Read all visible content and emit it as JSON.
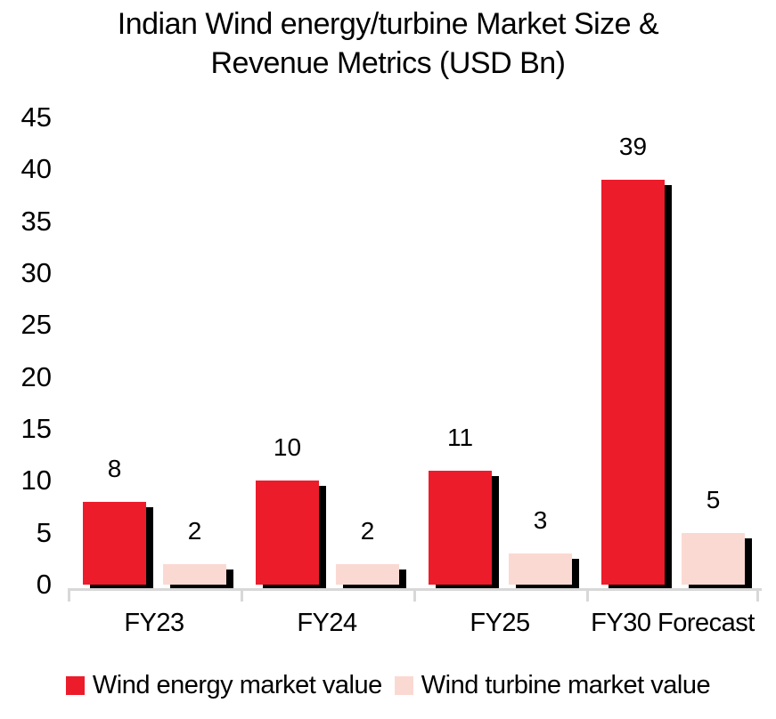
{
  "chart_data": {
    "type": "bar",
    "title": "Indian Wind energy/turbine Market Size & Revenue Metrics (USD Bn)",
    "title_lines": [
      "Indian Wind energy/turbine Market Size &",
      "Revenue Metrics (USD Bn)"
    ],
    "categories": [
      "FY23",
      "FY24",
      "FY25",
      "FY30 Forecast"
    ],
    "series": [
      {
        "name": "Wind energy market value",
        "color": "#ed1c2b",
        "values": [
          8,
          10,
          11,
          39
        ]
      },
      {
        "name": "Wind turbine market value",
        "color": "#fbd9d3",
        "values": [
          2,
          2,
          3,
          5
        ]
      }
    ],
    "ylim": [
      0,
      45
    ],
    "yticks": [
      0,
      5,
      10,
      15,
      20,
      25,
      30,
      35,
      40,
      45
    ],
    "xlabel": "",
    "ylabel": "",
    "grid": false,
    "value_labels": true,
    "legend_position": "bottom",
    "colors": {
      "axis": "#d8d8d8",
      "bar_shadow": "#000000",
      "text": "#000000",
      "background": "#ffffff"
    }
  }
}
